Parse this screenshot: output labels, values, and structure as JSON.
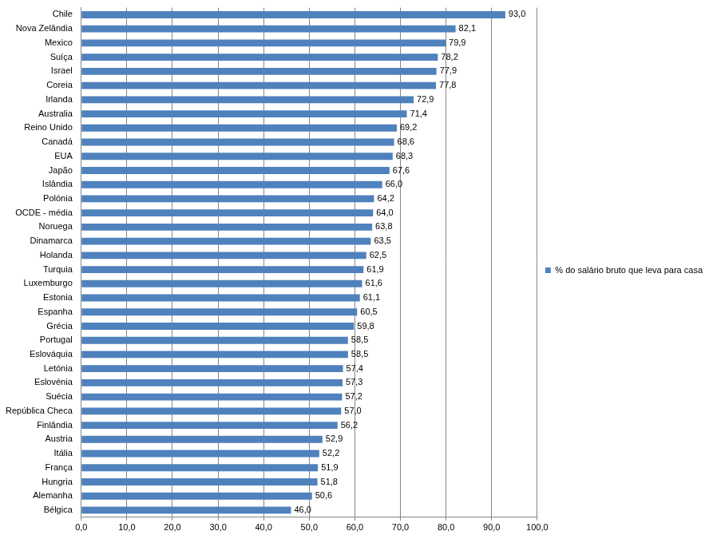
{
  "chart_data": {
    "type": "bar",
    "orientation": "horizontal",
    "categories": [
      "Chile",
      "Nova Zelândia",
      "Mexico",
      "Suíça",
      "Israel",
      "Coreia",
      "Irlanda",
      "Australia",
      "Reino Unido",
      "Canadá",
      "EUA",
      "Japão",
      "Islândia",
      "Polónia",
      "OCDE - média",
      "Noruega",
      "Dinamarca",
      "Holanda",
      "Turquia",
      "Luxemburgo",
      "Estonia",
      "Espanha",
      "Grécia",
      "Portugal",
      "Eslováquia",
      "Letónia",
      "Eslovénia",
      "Suécia",
      "República Checa",
      "Finlândia",
      "Austria",
      "Itália",
      "França",
      "Hungria",
      "Alemanha",
      "Bélgica"
    ],
    "series": [
      {
        "name": "% do salário bruto que leva para casa",
        "color": "#4f81bd",
        "values": [
          93.0,
          82.1,
          79.9,
          78.2,
          77.9,
          77.8,
          72.9,
          71.4,
          69.2,
          68.6,
          68.3,
          67.6,
          66.0,
          64.2,
          64.0,
          63.8,
          63.5,
          62.5,
          61.9,
          61.6,
          61.1,
          60.5,
          59.8,
          58.5,
          58.5,
          57.4,
          57.3,
          57.2,
          57.0,
          56.2,
          52.9,
          52.2,
          51.9,
          51.8,
          50.6,
          46.0
        ],
        "value_labels": [
          "93,0",
          "82,1",
          "79,9",
          "78,2",
          "77,9",
          "77,8",
          "72,9",
          "71,4",
          "69,2",
          "68,6",
          "68,3",
          "67,6",
          "66,0",
          "64,2",
          "64,0",
          "63,8",
          "63,5",
          "62,5",
          "61,9",
          "61,6",
          "61,1",
          "60,5",
          "59,8",
          "58,5",
          "58,5",
          "57,4",
          "57,3",
          "57,2",
          "57,0",
          "56,2",
          "52,9",
          "52,2",
          "51,9",
          "51,8",
          "50,6",
          "46,0"
        ]
      }
    ],
    "xlim": [
      0,
      100
    ],
    "xticks": [
      {
        "value": 0,
        "label": "0,0"
      },
      {
        "value": 10,
        "label": "10,0"
      },
      {
        "value": 20,
        "label": "20,0"
      },
      {
        "value": 30,
        "label": "30,0"
      },
      {
        "value": 40,
        "label": "40,0"
      },
      {
        "value": 50,
        "label": "50,0"
      },
      {
        "value": 60,
        "label": "60,0"
      },
      {
        "value": 70,
        "label": "70,0"
      },
      {
        "value": 80,
        "label": "80,0"
      },
      {
        "value": 90,
        "label": "90,0"
      },
      {
        "value": 100,
        "label": "100,0"
      }
    ],
    "grid": true,
    "legend": "right",
    "data_labels": true
  }
}
